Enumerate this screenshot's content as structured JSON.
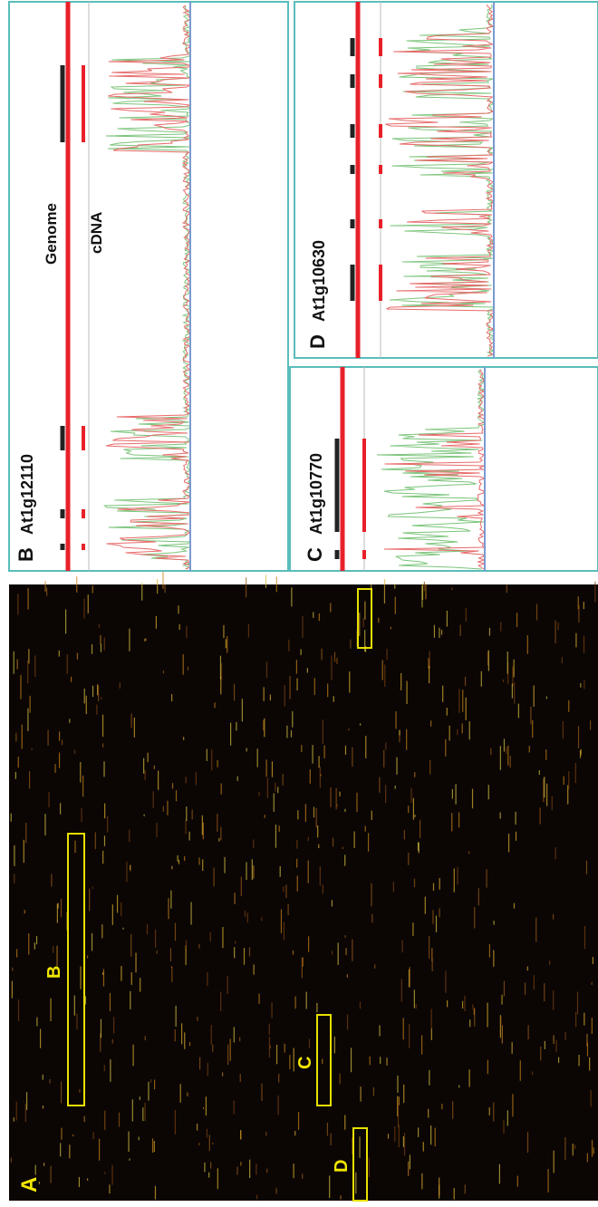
{
  "panel_a": {
    "label": "A",
    "boxes": [
      {
        "label": "B"
      },
      {
        "label": "C"
      },
      {
        "label": "D"
      }
    ]
  },
  "panels": [
    {
      "label": "B",
      "gene": "At1g12110",
      "tracks": [
        "Genome",
        "cDNA"
      ]
    },
    {
      "label": "C",
      "gene": "At1g10770"
    },
    {
      "label": "D",
      "gene": "At1g10630"
    }
  ]
}
